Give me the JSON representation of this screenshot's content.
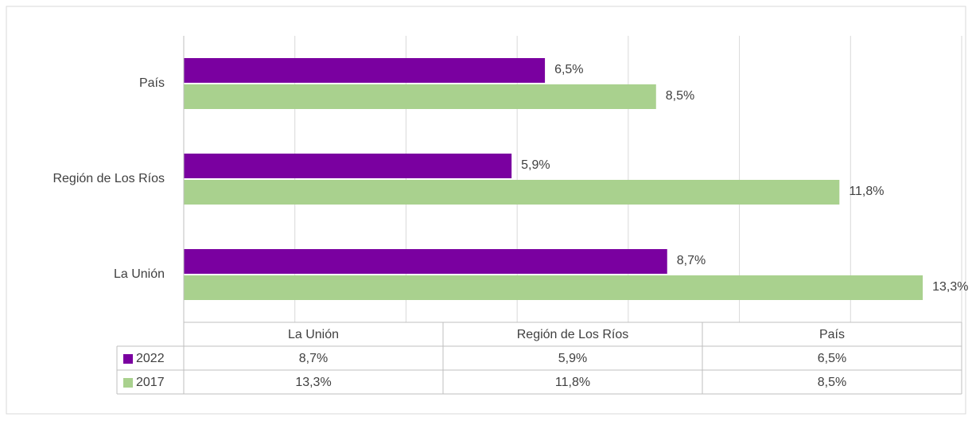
{
  "chart_data": {
    "type": "bar",
    "orientation": "horizontal",
    "categories": [
      "La Unión",
      "Región de Los Ríos",
      "País"
    ],
    "series": [
      {
        "name": "2022",
        "color": "#7a00a0",
        "values": [
          8.7,
          5.9,
          6.5
        ],
        "value_labels": [
          "8,7%",
          "5,9%",
          "6,5%"
        ]
      },
      {
        "name": "2017",
        "color": "#a9d18e",
        "values": [
          13.3,
          11.8,
          8.5
        ],
        "value_labels": [
          "13,3%",
          "11,8%",
          "8,5%"
        ]
      }
    ],
    "xlim": [
      0,
      14
    ],
    "xticks": [
      0,
      2,
      4,
      6,
      8,
      10,
      12,
      14
    ],
    "grid": true,
    "data_table": true
  }
}
